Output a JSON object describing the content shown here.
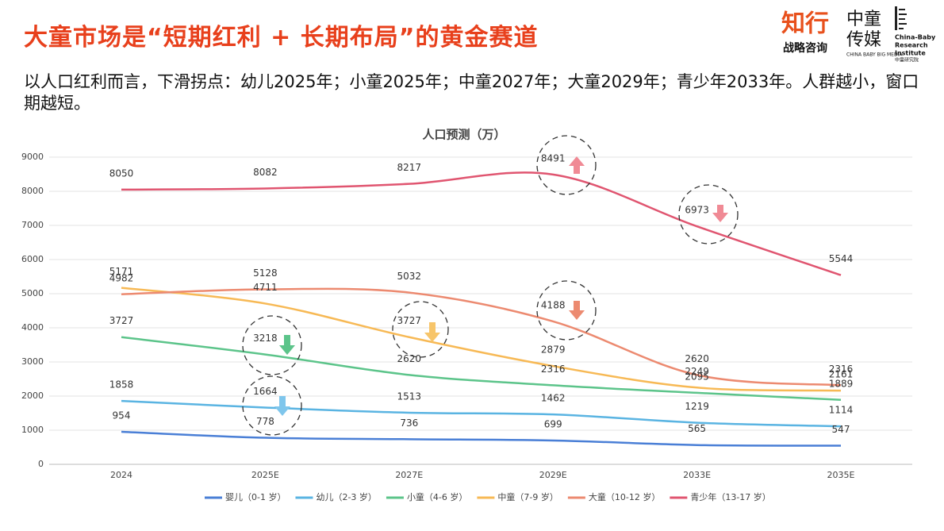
{
  "header": {
    "title": "大童市场是“短期红利 + 长期布局”的黄金赛道",
    "subtitle": "以人口红利而言，下滑拐点：幼儿2025年；小童2025年；中童2027年；大童2029年；青少年2033年。人群越小，窗口期越短。"
  },
  "logo": {
    "brand": "知行",
    "brand_sub": "战略咨询",
    "media_1": "中童",
    "media_2": "传媒",
    "media_en": "CHINA BABY BIG MEDIA",
    "institute_1": "China-Baby",
    "institute_2": "Research",
    "institute_3": "Institute",
    "institute_cn": "中童研究院"
  },
  "chart_data": {
    "type": "line",
    "title": "人口预测（万）",
    "categories": [
      "2024",
      "2025E",
      "2027E",
      "2029E",
      "2033E",
      "2035E"
    ],
    "series": [
      {
        "name": "婴儿（0-1 岁）",
        "color": "#4a7fd6",
        "values": [
          954,
          778,
          736,
          699,
          565,
          547
        ]
      },
      {
        "name": "幼儿（2-3 岁）",
        "color": "#5ab4e2",
        "values": [
          1858,
          1664,
          1513,
          1462,
          1219,
          1114
        ]
      },
      {
        "name": "小童（4-6 岁）",
        "color": "#5cc48a",
        "values": [
          3727,
          3218,
          2620,
          2316,
          2095,
          1889
        ]
      },
      {
        "name": "中童（7-9 岁）",
        "color": "#f7b955",
        "values": [
          5171,
          4711,
          3727,
          2879,
          2249,
          2161
        ]
      },
      {
        "name": "大童（10-12 岁）",
        "color": "#ec8a70",
        "values": [
          4982,
          5128,
          5032,
          4188,
          2620,
          2316
        ]
      },
      {
        "name": "青少年（13-17 岁）",
        "color": "#e05570",
        "values": [
          8050,
          8082,
          8217,
          8491,
          6973,
          5544
        ]
      }
    ],
    "ylim": [
      0,
      9000
    ],
    "yticks": [
      0,
      1000,
      2000,
      3000,
      4000,
      5000,
      6000,
      7000,
      8000,
      9000
    ],
    "grid": true,
    "legend": "bottom"
  }
}
